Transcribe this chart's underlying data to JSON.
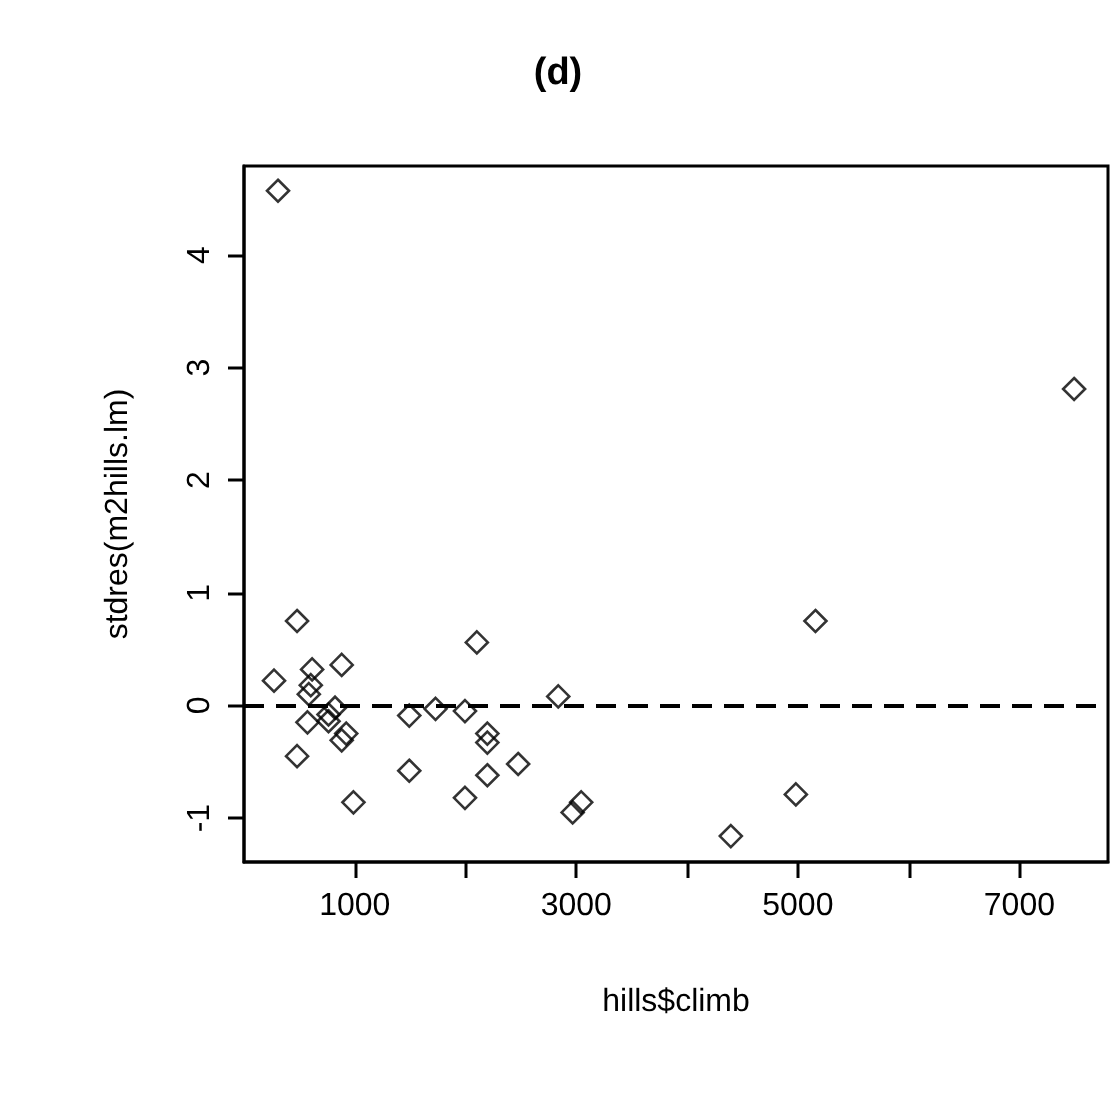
{
  "chart_data": {
    "type": "scatter",
    "title": "(d)",
    "xlabel": "hills$climb",
    "ylabel": "stdres(m2hills.lm)",
    "x": [
      307,
      7494,
      5159,
      479,
      2102,
      271,
      615,
      882,
      603,
      585,
      2837,
      822,
      1729,
      763,
      1492,
      1995,
      573,
      763,
      923,
      882,
      2197,
      2197,
      479,
      1492,
      2197,
      2475,
      988,
      1995,
      3044,
      2967,
      4395,
      4982
    ],
    "values": [
      4.57,
      2.81,
      0.75,
      0.75,
      0.56,
      0.22,
      0.32,
      0.36,
      0.18,
      0.1,
      0.08,
      -0.02,
      -0.03,
      -0.08,
      -0.09,
      -0.05,
      -0.15,
      -0.14,
      -0.25,
      -0.31,
      -0.25,
      -0.33,
      -0.45,
      -0.58,
      -0.62,
      -0.52,
      -0.86,
      -0.82,
      -0.86,
      -0.95,
      -1.16,
      -0.79
    ],
    "color": "#000000",
    "marker": "diamond",
    "xlim": [
      0,
      7800
    ],
    "xticks": [
      1000,
      {
        "value": 2000,
        "label": null
      },
      3000,
      {
        "value": 4000,
        "label": null
      },
      5000,
      {
        "value": 6000,
        "label": null
      },
      7000
    ],
    "ylim": [
      -1.39,
      4.79
    ],
    "yticks": [
      -1,
      0,
      1,
      2,
      3,
      4
    ],
    "ref_lines": [
      {
        "axis": "y",
        "value": 0,
        "line_style": "dashed",
        "color": "#000000"
      }
    ]
  }
}
